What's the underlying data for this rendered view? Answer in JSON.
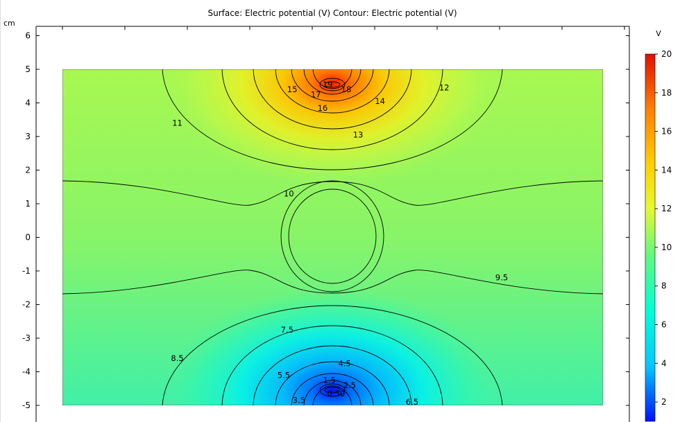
{
  "chart_data": {
    "type": "heatmap",
    "title": "Surface: Electric potential (V)  Contour: Electric potential (V)",
    "xlabel": "",
    "ylabel": "cm",
    "colorbar_label": "V",
    "x_range_data": [
      -8,
      8
    ],
    "ylim": [
      -5.3,
      6.3
    ],
    "domain": {
      "x": [
        -8,
        8
      ],
      "y": [
        -5,
        5
      ]
    },
    "y_ticks": [
      "6",
      "5",
      "4",
      "3",
      "2",
      "1",
      "0",
      "-1",
      "-2",
      "-3",
      "-4",
      "-5"
    ],
    "colorbar": {
      "range": [
        1,
        20
      ],
      "ticks": [
        "20",
        "18",
        "16",
        "14",
        "12",
        "10",
        "8",
        "6",
        "4",
        "2"
      ],
      "colormap": "rainbow",
      "stops": [
        "#0010ff",
        "#00c8ff",
        "#00ffd8",
        "#60f880",
        "#e8f830",
        "#ffd000",
        "#ff8000",
        "#e01000"
      ]
    },
    "background_potential_V": 10,
    "sources": [
      {
        "type": "source",
        "x": 0,
        "y": 4.5,
        "potential_V": 20
      },
      {
        "type": "sink",
        "x": 0,
        "y": -4.5,
        "potential_V": 0
      }
    ],
    "embedded_object": {
      "shape": "circle",
      "center": [
        0,
        0
      ],
      "radius_cm": 1.4
    },
    "contour_labels": [
      {
        "text": "19",
        "x": -0.15,
        "y": 4.55
      },
      {
        "text": "18",
        "x": 0.4,
        "y": 4.4
      },
      {
        "text": "17",
        "x": -0.5,
        "y": 4.25
      },
      {
        "text": "16",
        "x": -0.3,
        "y": 3.85
      },
      {
        "text": "15",
        "x": -1.2,
        "y": 4.4
      },
      {
        "text": "14",
        "x": 1.4,
        "y": 4.05
      },
      {
        "text": "13",
        "x": 0.75,
        "y": 3.05
      },
      {
        "text": "12",
        "x": 3.3,
        "y": 4.45
      },
      {
        "text": "11",
        "x": -4.6,
        "y": 3.4
      },
      {
        "text": "10",
        "x": -1.3,
        "y": 1.3
      },
      {
        "text": "9.5",
        "x": 5.0,
        "y": -1.2
      },
      {
        "text": "8.5",
        "x": -4.6,
        "y": -3.6
      },
      {
        "text": "7.5",
        "x": -1.35,
        "y": -2.75
      },
      {
        "text": "5.5",
        "x": -1.45,
        "y": -4.1
      },
      {
        "text": "4.5",
        "x": 0.35,
        "y": -3.75
      },
      {
        "text": "3.5",
        "x": -1.0,
        "y": -4.85
      },
      {
        "text": "2.5",
        "x": 0.5,
        "y": -4.4
      },
      {
        "text": "1.5",
        "x": -0.1,
        "y": -4.25
      },
      {
        "text": "6.5",
        "x": 2.35,
        "y": -4.9
      },
      {
        "text": "0.50",
        "x": 0.1,
        "y": -4.65
      }
    ]
  }
}
